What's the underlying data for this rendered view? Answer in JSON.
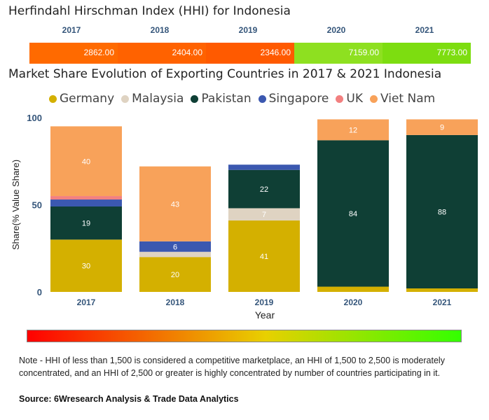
{
  "hhi": {
    "title": "Herfindahl Hirschman Index (HHI) for Indonesia",
    "years": [
      "2017",
      "2018",
      "2019",
      "2020",
      "2021"
    ],
    "values": [
      "2862.00",
      "2404.00",
      "2346.00",
      "7159.00",
      "7773.00"
    ],
    "colors": [
      "#ff6a00",
      "#ff6200",
      "#ff5a00",
      "#8ee020",
      "#7ddd10"
    ]
  },
  "chart_title": "Market Share Evolution of Exporting Countries in 2017 & 2021 Indonesia",
  "legend": [
    {
      "name": "Germany",
      "color": "#d4b000"
    },
    {
      "name": "Malaysia",
      "color": "#dfd3c2"
    },
    {
      "name": "Pakistan",
      "color": "#0f3f35"
    },
    {
      "name": "Singapore",
      "color": "#3b58b0"
    },
    {
      "name": "UK",
      "color": "#f28080"
    },
    {
      "name": "Viet Nam",
      "color": "#f8a25a"
    }
  ],
  "chart_data": {
    "type": "bar",
    "stacked": true,
    "categories": [
      "2017",
      "2018",
      "2019",
      "2020",
      "2021"
    ],
    "series": [
      {
        "name": "Germany",
        "values": [
          30,
          20,
          41,
          3,
          2
        ]
      },
      {
        "name": "Malaysia",
        "values": [
          0,
          3,
          7,
          0,
          0
        ]
      },
      {
        "name": "Pakistan",
        "values": [
          19,
          0,
          22,
          84,
          88
        ]
      },
      {
        "name": "Singapore",
        "values": [
          4,
          6,
          3,
          0,
          0
        ]
      },
      {
        "name": "UK",
        "values": [
          2,
          0,
          0,
          0,
          0
        ]
      },
      {
        "name": "Viet Nam",
        "values": [
          40,
          43,
          0,
          12,
          9
        ]
      }
    ],
    "series_colors": [
      "#d4b000",
      "#dfd3c2",
      "#0f3f35",
      "#3b58b0",
      "#f28080",
      "#f8a25a"
    ],
    "segment_labels": [
      [
        "30",
        "",
        "19",
        "",
        "",
        "40"
      ],
      [
        "20",
        "",
        "",
        "6",
        "",
        "43"
      ],
      [
        "41",
        "7",
        "22",
        "",
        "",
        ""
      ],
      [
        "",
        "",
        "84",
        "",
        "",
        "12"
      ],
      [
        "",
        "",
        "88",
        "",
        "",
        "9"
      ]
    ],
    "xlabel": "Year",
    "ylabel": "Share(% Value Share)",
    "ylim": [
      0,
      100
    ],
    "yticks": [
      "0",
      "50",
      "100"
    ]
  },
  "note": "Note - HHI of less than 1,500 is considered a competitive marketplace, an HHI of 1,500 to 2,500 is moderately concentrated, and an HHI of 2,500 or greater is highly concentrated by number of countries participating in it.",
  "source": "Source: 6Wresearch Analysis & Trade Data Analytics"
}
